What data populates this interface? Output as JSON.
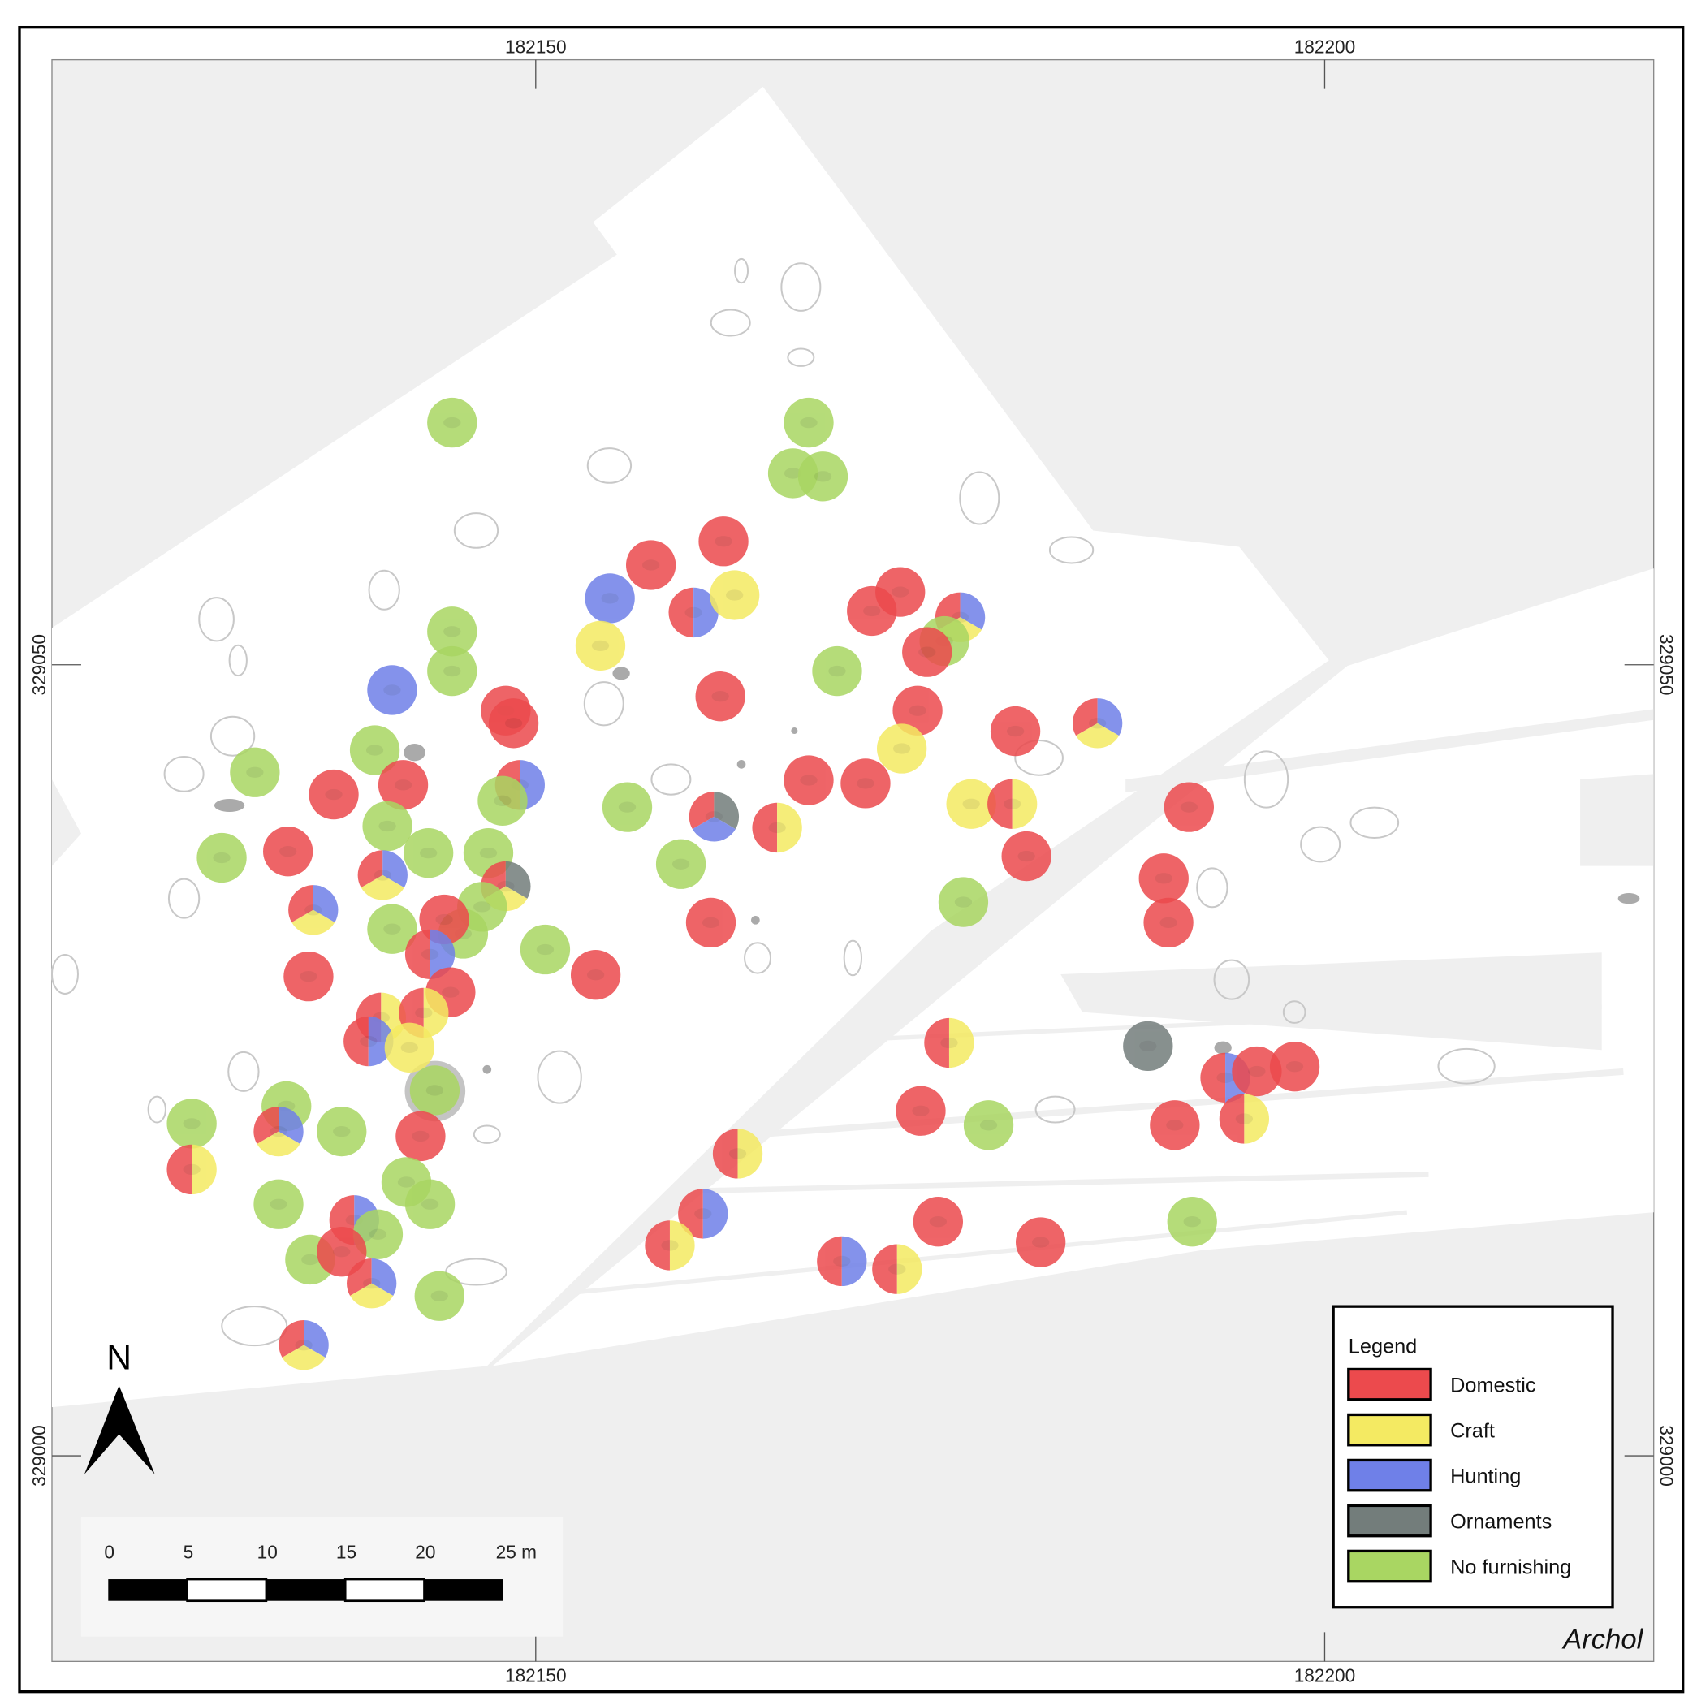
{
  "map": {
    "grid_labels": {
      "easting": [
        "182150",
        "182200"
      ],
      "northing": [
        "329050",
        "329000"
      ]
    },
    "north_label": "N",
    "scale_bar": {
      "labels": [
        "0",
        "5",
        "10",
        "15",
        "20",
        "25 m"
      ]
    },
    "credit": "Archol",
    "legend": {
      "title": "Legend",
      "items": [
        {
          "code": "D",
          "label": "Domestic",
          "color": "#ec4a4d"
        },
        {
          "code": "C",
          "label": "Craft",
          "color": "#f4ea62"
        },
        {
          "code": "H",
          "label": "Hunting",
          "color": "#6f80e8"
        },
        {
          "code": "O",
          "label": "Ornaments",
          "color": "#737d7b"
        },
        {
          "code": "N",
          "label": "No furnishing",
          "color": "#a9d662"
        }
      ]
    },
    "features": [
      {
        "e": 182144.7,
        "n": 329065.3,
        "cat": "N"
      },
      {
        "e": 182167.3,
        "n": 329065.3,
        "cat": "N"
      },
      {
        "e": 182166.3,
        "n": 329062.1,
        "cat": "N"
      },
      {
        "e": 182168.2,
        "n": 329061.9,
        "cat": "N"
      },
      {
        "e": 182161.9,
        "n": 329057.8,
        "cat": "D"
      },
      {
        "e": 182157.3,
        "n": 329056.3,
        "cat": "D"
      },
      {
        "e": 182154.7,
        "n": 329054.2,
        "cat": "H"
      },
      {
        "e": 182160.0,
        "n": 329053.3,
        "cat": "DH"
      },
      {
        "e": 182162.6,
        "n": 329054.4,
        "cat": "C"
      },
      {
        "e": 182154.1,
        "n": 329051.2,
        "cat": "C"
      },
      {
        "e": 182171.3,
        "n": 329053.4,
        "cat": "D"
      },
      {
        "e": 182173.1,
        "n": 329054.6,
        "cat": "D"
      },
      {
        "e": 182176.9,
        "n": 329053.0,
        "cat": "DHC"
      },
      {
        "e": 182175.9,
        "n": 329051.5,
        "cat": "N"
      },
      {
        "e": 182174.8,
        "n": 329050.8,
        "cat": "D"
      },
      {
        "e": 182169.1,
        "n": 329049.6,
        "cat": "N"
      },
      {
        "e": 182144.7,
        "n": 329052.1,
        "cat": "N"
      },
      {
        "e": 182144.7,
        "n": 329049.6,
        "cat": "N"
      },
      {
        "e": 182140.9,
        "n": 329048.4,
        "cat": "H"
      },
      {
        "e": 182148.1,
        "n": 329047.1,
        "cat": "D"
      },
      {
        "e": 182148.6,
        "n": 329046.3,
        "cat": "D"
      },
      {
        "e": 182161.7,
        "n": 329048.0,
        "cat": "D"
      },
      {
        "e": 182174.2,
        "n": 329047.1,
        "cat": "D"
      },
      {
        "e": 182180.4,
        "n": 329045.8,
        "cat": "D"
      },
      {
        "e": 182185.6,
        "n": 329046.3,
        "cat": "DHC"
      },
      {
        "e": 182173.2,
        "n": 329044.7,
        "cat": "C"
      },
      {
        "e": 182132.2,
        "n": 329043.2,
        "cat": "N"
      },
      {
        "e": 182139.8,
        "n": 329044.6,
        "cat": "N"
      },
      {
        "e": 182137.2,
        "n": 329041.8,
        "cat": "D"
      },
      {
        "e": 182141.6,
        "n": 329042.4,
        "cat": "D"
      },
      {
        "e": 182149.0,
        "n": 329042.4,
        "cat": "DH"
      },
      {
        "e": 182147.9,
        "n": 329041.4,
        "cat": "N"
      },
      {
        "e": 182155.8,
        "n": 329041.0,
        "cat": "N"
      },
      {
        "e": 182167.3,
        "n": 329042.7,
        "cat": "D"
      },
      {
        "e": 182170.9,
        "n": 329042.5,
        "cat": "D"
      },
      {
        "e": 182161.3,
        "n": 329040.4,
        "cat": "DOH"
      },
      {
        "e": 182165.3,
        "n": 329039.7,
        "cat": "DC"
      },
      {
        "e": 182177.6,
        "n": 329041.2,
        "cat": "C"
      },
      {
        "e": 182180.2,
        "n": 329041.2,
        "cat": "DC"
      },
      {
        "e": 182191.4,
        "n": 329041.0,
        "cat": "D"
      },
      {
        "e": 182130.1,
        "n": 329037.8,
        "cat": "N"
      },
      {
        "e": 182134.3,
        "n": 329038.2,
        "cat": "D"
      },
      {
        "e": 182140.6,
        "n": 329039.8,
        "cat": "N"
      },
      {
        "e": 182143.2,
        "n": 329038.1,
        "cat": "N"
      },
      {
        "e": 182140.3,
        "n": 329036.7,
        "cat": "DHC"
      },
      {
        "e": 182147.0,
        "n": 329038.1,
        "cat": "N"
      },
      {
        "e": 182148.1,
        "n": 329036.0,
        "cat": "DOC"
      },
      {
        "e": 182159.2,
        "n": 329037.4,
        "cat": "N"
      },
      {
        "e": 182181.1,
        "n": 329037.9,
        "cat": "D"
      },
      {
        "e": 182135.9,
        "n": 329034.5,
        "cat": "DHC"
      },
      {
        "e": 182177.1,
        "n": 329035.0,
        "cat": "N"
      },
      {
        "e": 182189.8,
        "n": 329036.5,
        "cat": "D"
      },
      {
        "e": 182190.1,
        "n": 329033.7,
        "cat": "D"
      },
      {
        "e": 182161.1,
        "n": 329033.7,
        "cat": "D"
      },
      {
        "e": 182140.9,
        "n": 329033.3,
        "cat": "N"
      },
      {
        "e": 182146.6,
        "n": 329034.7,
        "cat": "N"
      },
      {
        "e": 182145.4,
        "n": 329033.0,
        "cat": "N"
      },
      {
        "e": 182144.2,
        "n": 329033.9,
        "cat": "D"
      },
      {
        "e": 182143.3,
        "n": 329031.7,
        "cat": "DH"
      },
      {
        "e": 182150.6,
        "n": 329032.0,
        "cat": "N"
      },
      {
        "e": 182153.8,
        "n": 329030.4,
        "cat": "D"
      },
      {
        "e": 182135.6,
        "n": 329030.3,
        "cat": "D"
      },
      {
        "e": 182144.6,
        "n": 329029.3,
        "cat": "D"
      },
      {
        "e": 182140.2,
        "n": 329027.7,
        "cat": "DC"
      },
      {
        "e": 182142.9,
        "n": 329028.0,
        "cat": "DC"
      },
      {
        "e": 182139.4,
        "n": 329026.2,
        "cat": "DH"
      },
      {
        "e": 182142.0,
        "n": 329025.8,
        "cat": "C"
      },
      {
        "e": 182143.6,
        "n": 329023.1,
        "cat": "N"
      },
      {
        "e": 182176.2,
        "n": 329026.1,
        "cat": "DC"
      },
      {
        "e": 182188.8,
        "n": 329025.9,
        "cat": "O"
      },
      {
        "e": 182193.7,
        "n": 329023.9,
        "cat": "DH"
      },
      {
        "e": 182195.7,
        "n": 329024.3,
        "cat": "D"
      },
      {
        "e": 182198.1,
        "n": 329024.6,
        "cat": "D"
      },
      {
        "e": 182134.2,
        "n": 329022.1,
        "cat": "N"
      },
      {
        "e": 182128.2,
        "n": 329021.0,
        "cat": "N"
      },
      {
        "e": 182133.7,
        "n": 329020.5,
        "cat": "DHC"
      },
      {
        "e": 182137.7,
        "n": 329020.5,
        "cat": "N"
      },
      {
        "e": 182142.7,
        "n": 329020.2,
        "cat": "D"
      },
      {
        "e": 182128.2,
        "n": 329018.1,
        "cat": "DC"
      },
      {
        "e": 182174.4,
        "n": 329021.8,
        "cat": "D"
      },
      {
        "e": 182178.7,
        "n": 329020.9,
        "cat": "N"
      },
      {
        "e": 182190.5,
        "n": 329020.9,
        "cat": "D"
      },
      {
        "e": 182194.9,
        "n": 329021.3,
        "cat": "DC"
      },
      {
        "e": 182162.8,
        "n": 329019.1,
        "cat": "DC"
      },
      {
        "e": 182141.8,
        "n": 329017.3,
        "cat": "N"
      },
      {
        "e": 182133.7,
        "n": 329015.9,
        "cat": "N"
      },
      {
        "e": 182143.3,
        "n": 329015.9,
        "cat": "N"
      },
      {
        "e": 182138.5,
        "n": 329014.9,
        "cat": "DH"
      },
      {
        "e": 182140.0,
        "n": 329014.0,
        "cat": "N"
      },
      {
        "e": 182135.7,
        "n": 329012.4,
        "cat": "N"
      },
      {
        "e": 182137.7,
        "n": 329012.9,
        "cat": "D"
      },
      {
        "e": 182139.6,
        "n": 329010.9,
        "cat": "DHC"
      },
      {
        "e": 182143.9,
        "n": 329010.1,
        "cat": "N"
      },
      {
        "e": 182160.6,
        "n": 329015.3,
        "cat": "DH"
      },
      {
        "e": 182158.5,
        "n": 329013.3,
        "cat": "DC"
      },
      {
        "e": 182169.4,
        "n": 329012.3,
        "cat": "DH"
      },
      {
        "e": 182172.9,
        "n": 329011.8,
        "cat": "DC"
      },
      {
        "e": 182175.5,
        "n": 329014.8,
        "cat": "D"
      },
      {
        "e": 182182.0,
        "n": 329013.5,
        "cat": "D"
      },
      {
        "e": 182191.6,
        "n": 329014.8,
        "cat": "N"
      },
      {
        "e": 182135.3,
        "n": 329007.0,
        "cat": "DHC"
      }
    ]
  }
}
